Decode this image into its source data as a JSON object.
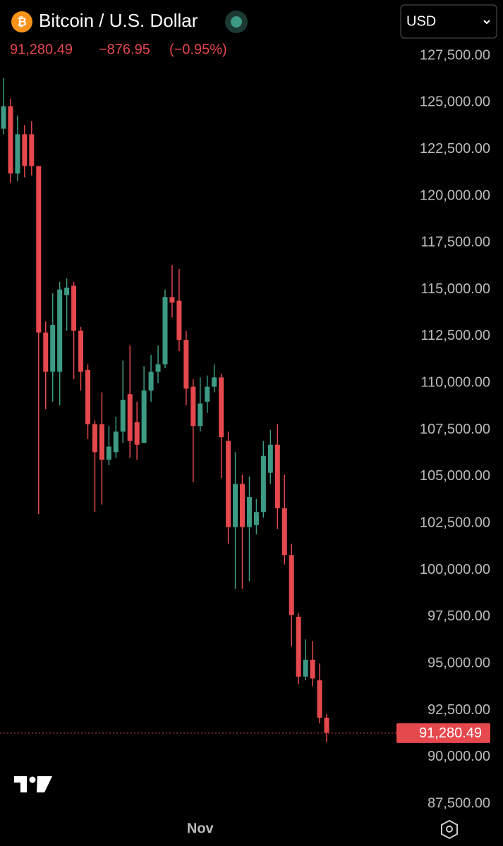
{
  "chart_data": {
    "type": "candlestick",
    "title": "Bitcoin / U.S. Dollar",
    "currency": "USD",
    "price": "91,280.49",
    "change": "−876.95",
    "change_pct": "(−0.95%)",
    "last_price": {
      "value": 91280.49,
      "label": "91,280.49"
    },
    "up_color": "#3d9a84",
    "down_color": "#e5484d",
    "categories": [
      null,
      null,
      null,
      null,
      null,
      null,
      null,
      null,
      null,
      null,
      null,
      null,
      null,
      null,
      null,
      null,
      null,
      null,
      null,
      null,
      null,
      null,
      null,
      null,
      null,
      null,
      null,
      null,
      "Nov",
      null,
      null,
      null,
      null,
      null,
      null,
      null,
      null,
      null,
      null,
      null,
      null,
      null,
      null,
      null,
      null,
      null,
      null
    ],
    "series": [
      {
        "open": [
          123600,
          124800,
          121200,
          123300,
          123300,
          121600,
          112700,
          110600,
          110600,
          114700,
          115200,
          112800,
          110700,
          107800,
          107800,
          105900,
          106300,
          107400,
          109400,
          107900,
          106800,
          109600,
          110600,
          111000,
          114600,
          114400,
          112300,
          109800,
          107700,
          109000,
          109800,
          110300,
          106900,
          102300,
          104600,
          102300,
          102400,
          103100,
          105200,
          106700,
          103300,
          100800,
          97500,
          94300,
          95200,
          94100,
          92100
        ],
        "high": [
          126300,
          125200,
          124300,
          123800,
          124000,
          121600,
          113300,
          114800,
          115400,
          115600,
          115400,
          113000,
          111000,
          108000,
          109500,
          107700,
          108200,
          111200,
          112000,
          109000,
          110900,
          111500,
          112000,
          115000,
          116300,
          116100,
          112800,
          110200,
          110300,
          110400,
          111000,
          110500,
          107400,
          106300,
          105100,
          105000,
          103800,
          106900,
          107500,
          107800,
          105100,
          101400,
          97700,
          96300,
          96200,
          95000,
          92300
        ],
        "low": [
          123300,
          120700,
          120800,
          121000,
          121100,
          103000,
          108600,
          109000,
          108800,
          112800,
          110200,
          109600,
          107000,
          103100,
          103500,
          105600,
          106000,
          106800,
          106000,
          105900,
          106800,
          109000,
          110000,
          110800,
          113500,
          111700,
          108800,
          104700,
          107400,
          108400,
          109500,
          104900,
          101400,
          99000,
          99000,
          99400,
          101900,
          102800,
          104600,
          102200,
          100300,
          95900,
          93900,
          94100,
          93800,
          91800,
          90800
        ],
        "close": [
          124800,
          121200,
          123300,
          121600,
          121600,
          112700,
          110600,
          113100,
          115000,
          115100,
          112800,
          110600,
          107800,
          106300,
          105900,
          106600,
          107400,
          109100,
          106900,
          106700,
          109600,
          110600,
          111000,
          114600,
          114300,
          112300,
          109700,
          107700,
          108900,
          109800,
          110300,
          107100,
          102300,
          104600,
          102300,
          103900,
          103100,
          106100,
          106700,
          103300,
          100800,
          97600,
          94300,
          95200,
          94200,
          92100,
          91300
        ]
      }
    ],
    "ylim": [
      86750,
      130480
    ],
    "yticks": [
      {
        "value": 87500,
        "label": "87,500.00"
      },
      {
        "value": 90000,
        "label": "90,000.00"
      },
      {
        "value": 92500,
        "label": "92,500.00"
      },
      {
        "value": 95000,
        "label": "95,000.00"
      },
      {
        "value": 97500,
        "label": "97,500.00"
      },
      {
        "value": 100000,
        "label": "100,000.00"
      },
      {
        "value": 102500,
        "label": "102,500.00"
      },
      {
        "value": 105000,
        "label": "105,000.00"
      },
      {
        "value": 107500,
        "label": "107,500.00"
      },
      {
        "value": 110000,
        "label": "110,000.00"
      },
      {
        "value": 112500,
        "label": "112,500.00"
      },
      {
        "value": 115000,
        "label": "115,000.00"
      },
      {
        "value": 117500,
        "label": "117,500.00"
      },
      {
        "value": 120000,
        "label": "120,000.00"
      },
      {
        "value": 122500,
        "label": "122,500.00"
      },
      {
        "value": 125000,
        "label": "125,000.00"
      },
      {
        "value": 127500,
        "label": "127,500.00"
      }
    ]
  }
}
